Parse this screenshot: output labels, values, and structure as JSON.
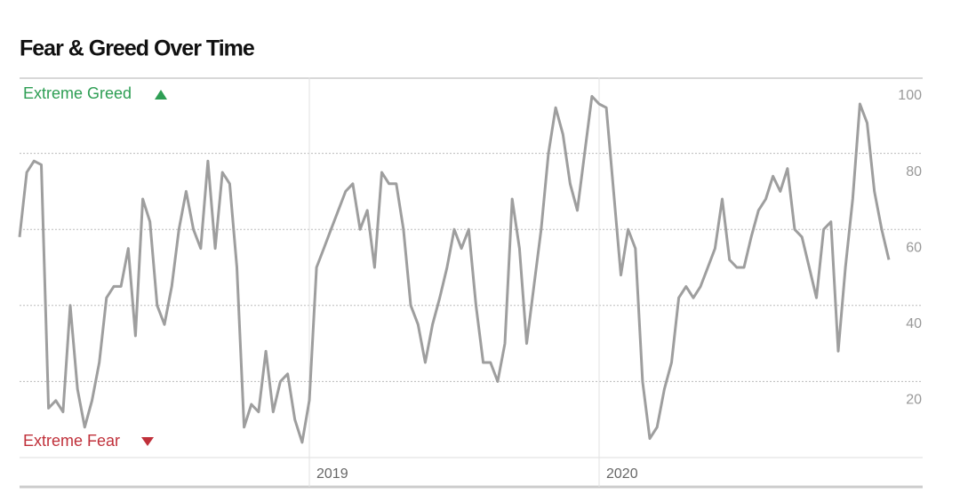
{
  "chart_data": {
    "type": "line",
    "title": "Fear & Greed Over Time",
    "annotations": [
      "Extreme Greed",
      "Extreme Fear"
    ],
    "categories": [
      null,
      null,
      null,
      null,
      null,
      null,
      null,
      null,
      null,
      null,
      null,
      null,
      null,
      null,
      null,
      null,
      null,
      null,
      null,
      null,
      null,
      null,
      null,
      null,
      null,
      null,
      null,
      null,
      null,
      null,
      null,
      null,
      null,
      null,
      null,
      null,
      null,
      null,
      null,
      null,
      "2019",
      null,
      null,
      null,
      null,
      null,
      null,
      null,
      null,
      null,
      null,
      null,
      null,
      null,
      null,
      null,
      null,
      null,
      null,
      null,
      null,
      null,
      null,
      null,
      null,
      null,
      null,
      null,
      null,
      null,
      null,
      null,
      null,
      null,
      null,
      null,
      null,
      null,
      null,
      null,
      "2020",
      null,
      null,
      null,
      null,
      null,
      null,
      null,
      null,
      null,
      null,
      null,
      null,
      null,
      null,
      null,
      null,
      null,
      null,
      null,
      null,
      null,
      null,
      null,
      null,
      null,
      null,
      null,
      null,
      null,
      null,
      null,
      null,
      null,
      null,
      null,
      null,
      null,
      null,
      null,
      null
    ],
    "values": [
      58,
      75,
      78,
      77,
      13,
      15,
      12,
      40,
      18,
      8,
      15,
      25,
      42,
      45,
      45,
      55,
      32,
      68,
      62,
      40,
      35,
      45,
      60,
      70,
      60,
      55,
      78,
      55,
      75,
      72,
      50,
      8,
      14,
      12,
      28,
      12,
      20,
      22,
      10,
      4,
      15,
      50,
      55,
      60,
      65,
      70,
      72,
      60,
      65,
      50,
      75,
      72,
      72,
      60,
      40,
      35,
      25,
      35,
      42,
      50,
      60,
      55,
      60,
      40,
      25,
      25,
      20,
      30,
      68,
      55,
      30,
      45,
      60,
      80,
      92,
      85,
      72,
      65,
      80,
      95,
      93,
      92,
      70,
      48,
      60,
      55,
      20,
      5,
      8,
      18,
      25,
      42,
      45,
      42,
      45,
      50,
      55,
      68,
      52,
      50,
      50,
      58,
      65,
      68,
      74,
      70,
      76,
      60,
      58,
      50,
      42,
      60,
      62,
      28,
      50,
      68,
      93,
      88,
      70,
      60,
      52
    ],
    "color": "#9e9e9e",
    "ylim": [
      0,
      100
    ],
    "yticks": [
      20,
      40,
      60,
      80,
      100
    ],
    "grid": true
  }
}
